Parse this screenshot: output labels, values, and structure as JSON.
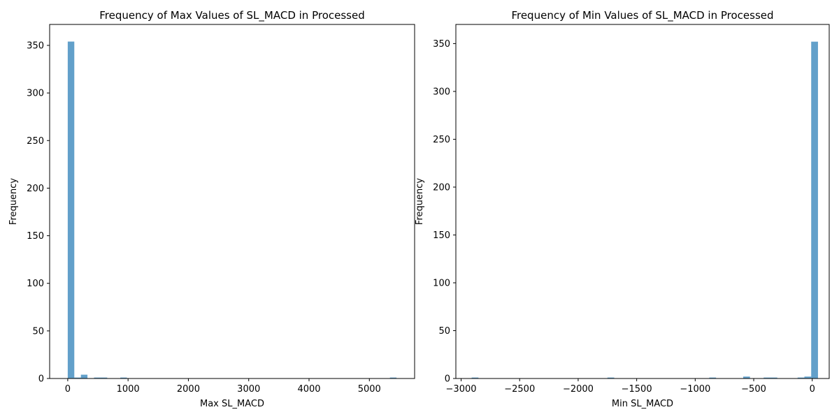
{
  "chart_data": [
    {
      "type": "bar",
      "title": "Frequency of Max Values of SL_MACD in Processed",
      "xlabel": "Max SL_MACD",
      "ylabel": "Frequency",
      "xlim": [
        -300,
        5750
      ],
      "ylim": [
        0,
        372
      ],
      "xticks": [
        0,
        1000,
        2000,
        3000,
        4000,
        5000
      ],
      "yticks": [
        0,
        50,
        100,
        150,
        200,
        250,
        300,
        350
      ],
      "bin_width": 109,
      "bar_color": "#1f77b4",
      "bars": [
        {
          "x": 0,
          "value": 354
        },
        {
          "x": 109,
          "value": 1
        },
        {
          "x": 218,
          "value": 4
        },
        {
          "x": 436,
          "value": 1
        },
        {
          "x": 545,
          "value": 1
        },
        {
          "x": 872,
          "value": 1
        },
        {
          "x": 5341,
          "value": 1
        }
      ]
    },
    {
      "type": "bar",
      "title": "Frequency of Min Values of SL_MACD in Processed",
      "xlabel": "Min SL_MACD",
      "ylabel": "Frequency",
      "xlim": [
        -3045,
        145
      ],
      "ylim": [
        0,
        370
      ],
      "xticks": [
        -3000,
        -2500,
        -2000,
        -1500,
        -1000,
        -500,
        0
      ],
      "yticks": [
        0,
        50,
        100,
        150,
        200,
        250,
        300,
        350
      ],
      "bin_width": 58,
      "bar_color": "#1f77b4",
      "bars": [
        {
          "x": -2910,
          "value": 1
        },
        {
          "x": -1750,
          "value": 1
        },
        {
          "x": -880,
          "value": 1
        },
        {
          "x": -590,
          "value": 2
        },
        {
          "x": -415,
          "value": 1
        },
        {
          "x": -357,
          "value": 1
        },
        {
          "x": -125,
          "value": 1
        },
        {
          "x": -67,
          "value": 2
        },
        {
          "x": -9,
          "value": 352
        }
      ]
    }
  ]
}
